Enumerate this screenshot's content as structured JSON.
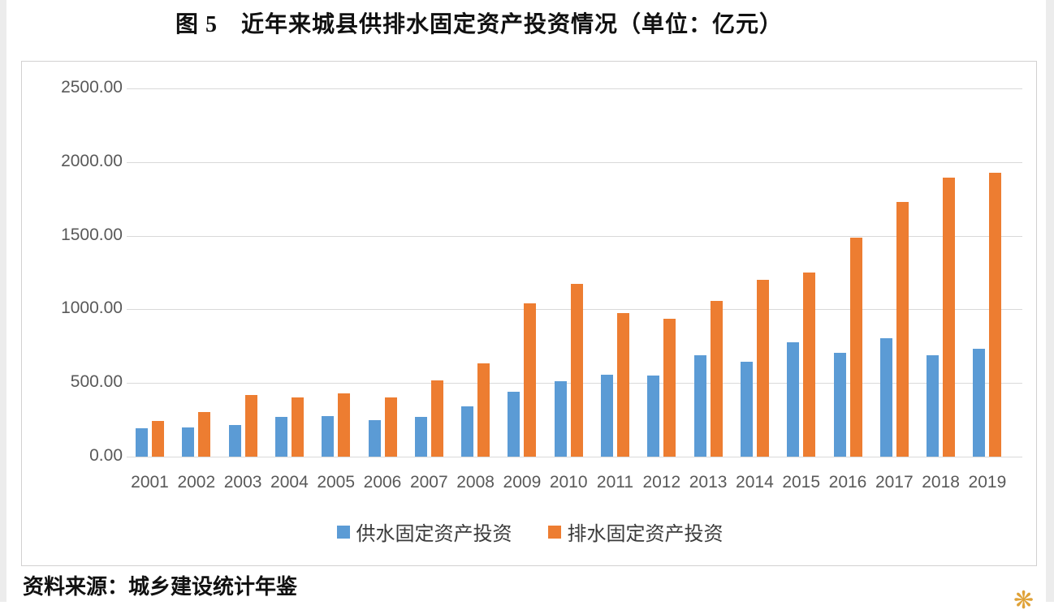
{
  "title": "图 5　近年来城县供排水固定资产投资情况（单位：亿元）",
  "source": "资料来源：城乡建设统计年鉴",
  "ornament": {
    "glyph": "❋",
    "color": "#dfa238"
  },
  "chart_data": {
    "type": "bar",
    "title": "图 5　近年来城县供排水固定资产投资情况（单位：亿元）",
    "unit": "亿元",
    "categories": [
      "2001",
      "2002",
      "2003",
      "2004",
      "2005",
      "2006",
      "2007",
      "2008",
      "2009",
      "2010",
      "2011",
      "2012",
      "2013",
      "2014",
      "2015",
      "2016",
      "2017",
      "2018",
      "2019"
    ],
    "series": [
      {
        "name": "供水固定资产投资",
        "color": "#5B9BD5",
        "values": [
          190,
          200,
          215,
          268,
          275,
          250,
          272,
          340,
          443,
          512,
          557,
          552,
          690,
          645,
          778,
          707,
          805,
          687,
          730
        ]
      },
      {
        "name": "排水固定资产投资",
        "color": "#ED7D31",
        "values": [
          243,
          305,
          420,
          400,
          428,
          400,
          515,
          635,
          1040,
          1175,
          975,
          935,
          1055,
          1200,
          1252,
          1485,
          1730,
          1895,
          1925
        ]
      }
    ],
    "ylim": [
      0,
      2500
    ],
    "ytick_step": 500,
    "ytick_labels": [
      "0.00",
      "500.00",
      "1000.00",
      "1500.00",
      "2000.00",
      "2500.00"
    ],
    "grid": true,
    "legend_position": "bottom"
  }
}
